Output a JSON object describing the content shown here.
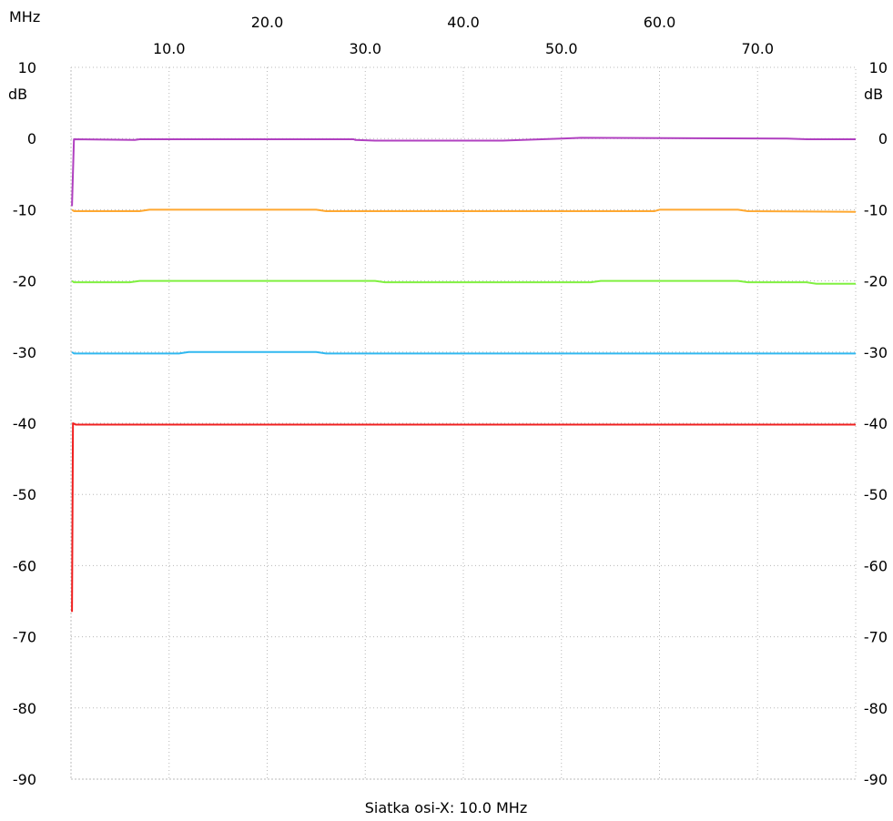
{
  "chart_data": {
    "type": "line",
    "x_unit": "MHz",
    "y_unit": "dB",
    "xlim": [
      0,
      80
    ],
    "ylim": [
      -90,
      10
    ],
    "x_ticks_top_row": [
      "20.0",
      "40.0",
      "60.0"
    ],
    "x_ticks_bottom_row": [
      "10.0",
      "30.0",
      "50.0",
      "70.0"
    ],
    "x_tick_values_top_row": [
      20,
      40,
      60
    ],
    "x_tick_values_bottom_row": [
      10,
      30,
      50,
      70
    ],
    "y_ticks": [
      "10",
      "0",
      "-10",
      "-20",
      "-30",
      "-40",
      "-50",
      "-60",
      "-70",
      "-80",
      "-90"
    ],
    "y_tick_values": [
      10,
      0,
      -10,
      -20,
      -30,
      -40,
      -50,
      -60,
      -70,
      -80,
      -90
    ],
    "grid": true,
    "xlabel": "Siatka osi-X: 10.0 MHz",
    "series": [
      {
        "color": "#b040c0",
        "x": [
          0.1,
          0.3,
          6.5,
          7,
          28.8,
          29,
          31,
          44,
          50,
          52,
          73,
          75,
          80
        ],
        "values": [
          -9.5,
          -0.1,
          -0.2,
          -0.1,
          -0.1,
          -0.2,
          -0.3,
          -0.3,
          0.0,
          0.1,
          0.0,
          -0.1,
          -0.1
        ]
      },
      {
        "color": "#ffa830",
        "x": [
          0.1,
          0.3,
          7,
          8,
          25,
          26,
          40,
          45,
          59.5,
          60,
          68,
          69,
          80
        ],
        "values": [
          -10.0,
          -10.2,
          -10.2,
          -10.0,
          -10.0,
          -10.2,
          -10.2,
          -10.2,
          -10.2,
          -10.0,
          -10.0,
          -10.2,
          -10.3
        ]
      },
      {
        "color": "#80f040",
        "x": [
          0.1,
          0.3,
          6,
          7,
          31,
          32,
          53,
          54,
          68,
          69,
          75,
          76,
          80
        ],
        "values": [
          -20.0,
          -20.2,
          -20.2,
          -20.0,
          -20.0,
          -20.2,
          -20.2,
          -20.0,
          -20.0,
          -20.2,
          -20.2,
          -20.4,
          -20.4
        ]
      },
      {
        "color": "#30b8f0",
        "x": [
          0.1,
          0.3,
          11,
          12,
          25,
          26,
          60,
          61,
          80
        ],
        "values": [
          -30.0,
          -30.2,
          -30.2,
          -30.0,
          -30.0,
          -30.2,
          -30.2,
          -30.2,
          -30.2
        ]
      },
      {
        "color": "#f02020",
        "x": [
          0.1,
          0.2,
          0.5,
          80
        ],
        "values": [
          -66.5,
          -40.0,
          -40.2,
          -40.2
        ]
      }
    ]
  }
}
